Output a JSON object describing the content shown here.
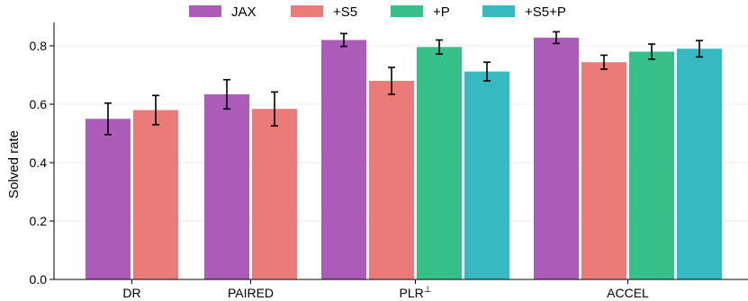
{
  "chart_data": {
    "type": "bar",
    "ylabel": "Solved rate",
    "ylim": [
      0,
      0.88
    ],
    "yticks": [
      0.0,
      0.2,
      0.4,
      0.6,
      0.8
    ],
    "ytick_labels": [
      "0.0",
      "0.2",
      "0.4",
      "0.6",
      "0.8"
    ],
    "grid": "horizontal",
    "legend_position": "top-center",
    "groups": [
      {
        "label": "DR",
        "bars": [
          {
            "series": "JAX",
            "value": 0.55,
            "err": 0.054
          },
          {
            "series": "+S5",
            "value": 0.58,
            "err": 0.05
          }
        ]
      },
      {
        "label": "PAIRED",
        "bars": [
          {
            "series": "JAX",
            "value": 0.634,
            "err": 0.05
          },
          {
            "series": "+S5",
            "value": 0.584,
            "err": 0.058
          }
        ]
      },
      {
        "label": "PLR",
        "label_sup": "⊥",
        "bars": [
          {
            "series": "JAX",
            "value": 0.82,
            "err": 0.022
          },
          {
            "series": "+S5",
            "value": 0.68,
            "err": 0.046
          },
          {
            "series": "+P",
            "value": 0.796,
            "err": 0.024
          },
          {
            "series": "+S5+P",
            "value": 0.712,
            "err": 0.032
          }
        ]
      },
      {
        "label": "ACCEL",
        "bars": [
          {
            "series": "JAX",
            "value": 0.828,
            "err": 0.02
          },
          {
            "series": "+S5",
            "value": 0.744,
            "err": 0.024
          },
          {
            "series": "+P",
            "value": 0.78,
            "err": 0.026
          },
          {
            "series": "+S5+P",
            "value": 0.79,
            "err": 0.028
          }
        ]
      }
    ],
    "series": [
      {
        "name": "JAX",
        "color": "#ab5cb9"
      },
      {
        "name": "+S5",
        "color": "#eb7b79"
      },
      {
        "name": "+P",
        "color": "#37bf8a"
      },
      {
        "name": "+S5+P",
        "color": "#37b9c1"
      }
    ]
  }
}
